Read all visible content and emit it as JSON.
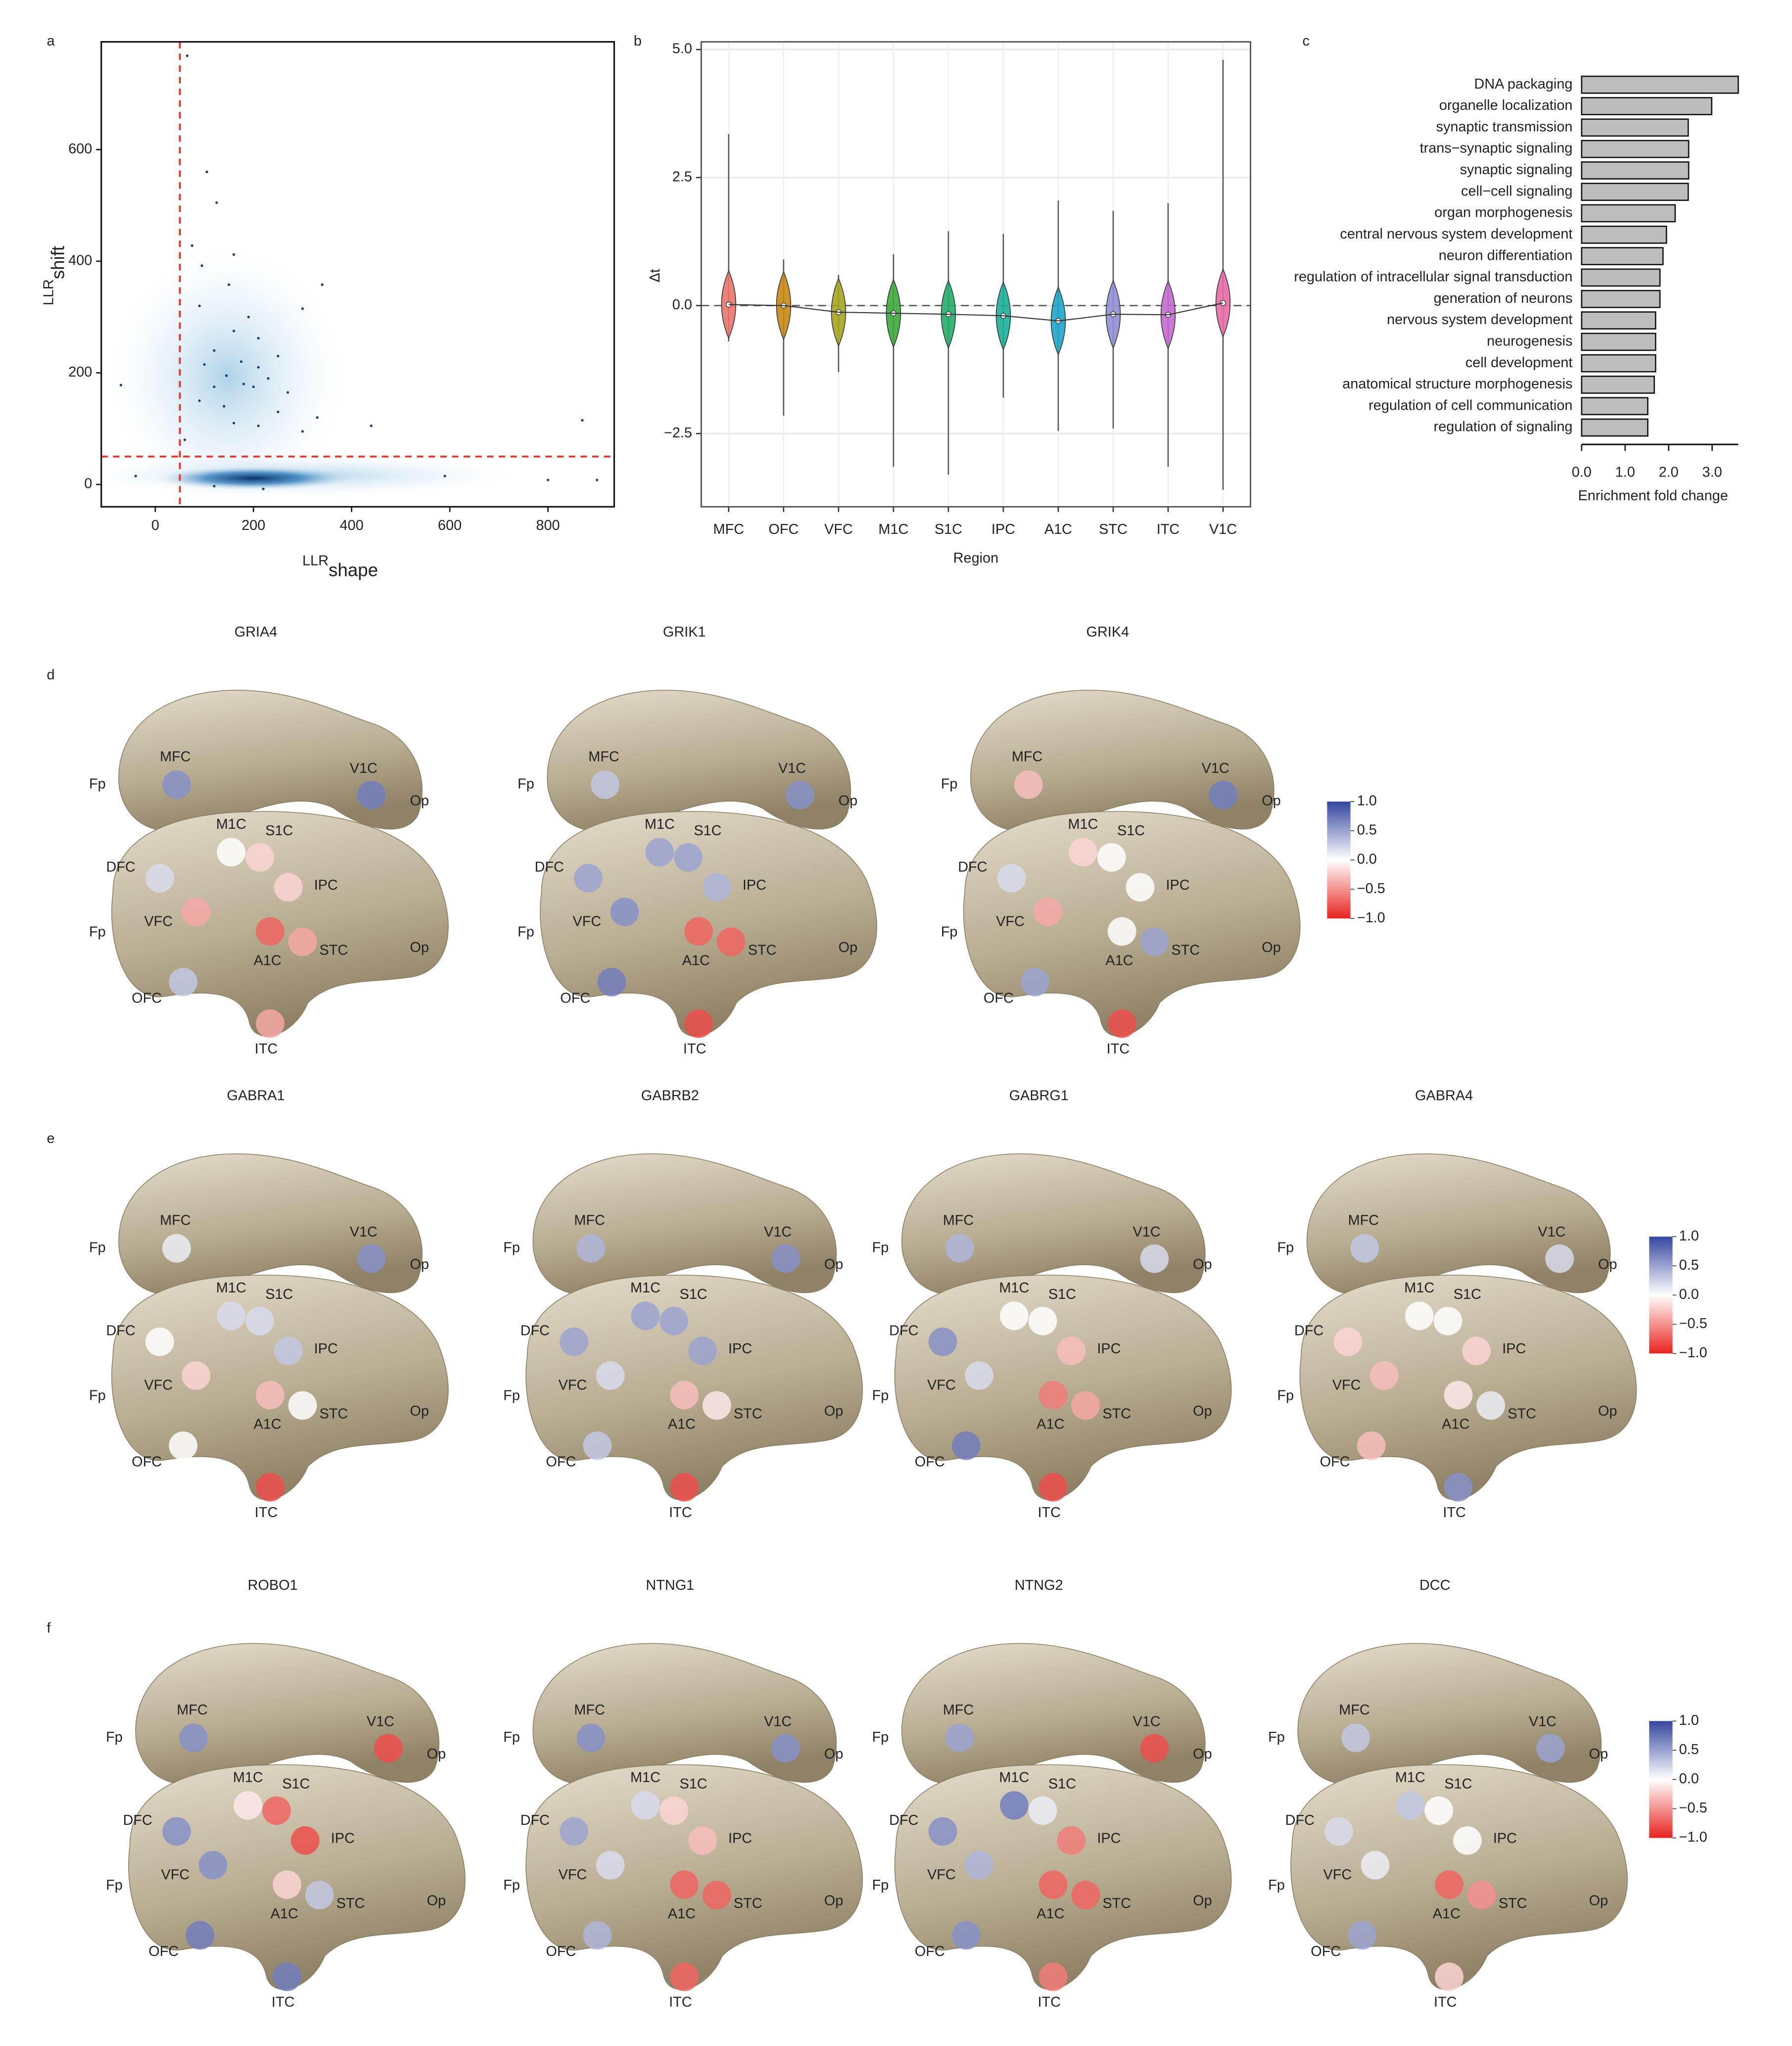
{
  "chart_data": [
    {
      "type": "scatter",
      "panel": "a",
      "xlabel": "LLR",
      "xlabel_sub": "shape",
      "ylabel": "LLR",
      "ylabel_sub": "shift",
      "x": [
        65,
        105,
        125,
        75,
        160,
        95,
        150,
        340,
        300,
        90,
        190,
        160,
        210,
        120,
        250,
        175,
        100,
        210,
        145,
        230,
        180,
        200,
        120,
        270,
        90,
        140,
        250,
        330,
        160,
        210,
        440,
        300,
        870,
        -70,
        60,
        -40,
        590,
        800,
        900,
        220,
        120
      ],
      "y": [
        768,
        560,
        505,
        428,
        412,
        392,
        358,
        358,
        315,
        320,
        300,
        275,
        262,
        240,
        230,
        220,
        215,
        210,
        195,
        190,
        180,
        175,
        175,
        165,
        150,
        140,
        130,
        120,
        110,
        105,
        105,
        95,
        115,
        178,
        80,
        15,
        15,
        8,
        8,
        -8,
        -3
      ],
      "color": "#1d3f6e",
      "xlim": [
        -110,
        935
      ],
      "ylim": [
        -40,
        793
      ],
      "xticks": [
        0,
        200,
        400,
        600,
        800
      ],
      "yticks": [
        0,
        200,
        400,
        600
      ],
      "vline": 50,
      "hline": 50,
      "line_color": "#e03a2e"
    },
    {
      "type": "violin",
      "panel": "b",
      "xlabel": "Region",
      "ylabel": "Δt",
      "categories": [
        "MFC",
        "OFC",
        "VFC",
        "M1C",
        "S1C",
        "IPC",
        "A1C",
        "STC",
        "ITC",
        "V1C"
      ],
      "values": [
        0.02,
        0.0,
        -0.13,
        -0.15,
        -0.17,
        -0.2,
        -0.3,
        -0.17,
        -0.18,
        0.05
      ],
      "min": [
        -0.7,
        -2.15,
        -1.3,
        -3.15,
        -3.3,
        -1.8,
        -2.45,
        -2.4,
        -3.15,
        -3.6
      ],
      "max": [
        3.35,
        0.9,
        0.6,
        1.0,
        1.45,
        1.4,
        2.05,
        1.85,
        2.0,
        4.8
      ],
      "colors": [
        "#e8736b",
        "#c88a12",
        "#a5a520",
        "#3caa3c",
        "#22ad6a",
        "#1aaf99",
        "#1ea5c8",
        "#8f8fd6",
        "#c46cd0",
        "#e86aa5"
      ],
      "ylim": [
        -3.93,
        5.15
      ],
      "yticks": [
        {
          "value": 5,
          "label": "5.0"
        },
        {
          "value": 2.5,
          "label": "2.5"
        },
        {
          "value": 0,
          "label": "0.0"
        },
        {
          "value": -2.5,
          "label": "−2.5"
        }
      ],
      "hline": 0,
      "grid": true
    },
    {
      "type": "barh",
      "panel": "c",
      "xlabel": "Enrichment fold change",
      "categories": [
        "DNA packaging",
        "organelle localization",
        "synaptic transmission",
        "trans−synaptic signaling",
        "synaptic signaling",
        "cell−cell signaling",
        "organ morphogenesis",
        "central nervous system development",
        "neuron differentiation",
        "regulation of intracellular signal transduction",
        "generation of neurons",
        "nervous system development",
        "neurogenesis",
        "cell development",
        "anatomical structure morphogenesis",
        "regulation of cell communication",
        "regulation of signaling"
      ],
      "values": [
        3.6,
        2.99,
        2.45,
        2.46,
        2.46,
        2.45,
        2.15,
        1.95,
        1.87,
        1.8,
        1.8,
        1.7,
        1.7,
        1.7,
        1.67,
        1.52,
        1.52
      ],
      "color": "#bdbdbd",
      "xlim": [
        0,
        3.6
      ],
      "xticks": [
        {
          "value": 0,
          "label": "0.0"
        },
        {
          "value": 1,
          "label": "1.0"
        },
        {
          "value": 2,
          "label": "2.0"
        },
        {
          "value": 3,
          "label": "3.0"
        }
      ]
    },
    {
      "type": "brain_map",
      "panel": "d",
      "regions": [
        "MFC",
        "V1C",
        "M1C",
        "S1C",
        "DFC",
        "IPC",
        "VFC",
        "A1C",
        "STC",
        "OFC",
        "ITC"
      ],
      "landmarks": [
        "Fp",
        "Op"
      ],
      "genes": [
        {
          "name": "GRIA4",
          "values": [
            0.6,
            0.7,
            0,
            -0.2,
            0.2,
            -0.2,
            -0.4,
            -0.7,
            -0.4,
            0.3,
            -0.4
          ]
        },
        {
          "name": "GRIK1",
          "values": [
            0.3,
            0.6,
            0.5,
            0.5,
            0.5,
            0.4,
            0.6,
            -0.7,
            -0.7,
            0.7,
            -0.8
          ]
        },
        {
          "name": "GRIK4",
          "values": [
            -0.3,
            0.7,
            -0.2,
            0,
            0.2,
            0,
            -0.4,
            0,
            0.5,
            0.5,
            -0.8
          ]
        }
      ],
      "clim": [
        -1,
        1
      ],
      "cticks": [
        {
          "value": 1,
          "label": "1.0"
        },
        {
          "value": 0.5,
          "label": "0.5"
        },
        {
          "value": 0,
          "label": "0.0"
        },
        {
          "value": -0.5,
          "label": "−0.5"
        },
        {
          "value": -1,
          "label": "−1.0"
        }
      ],
      "colors": {
        "positive": "#3546a0",
        "negative": "#e8231f"
      }
    },
    {
      "type": "brain_map",
      "panel": "e",
      "regions": [
        "MFC",
        "V1C",
        "M1C",
        "S1C",
        "DFC",
        "IPC",
        "VFC",
        "A1C",
        "STC",
        "OFC",
        "ITC"
      ],
      "landmarks": [
        "Fp",
        "Op"
      ],
      "genes": [
        {
          "name": "GABRA1",
          "values": [
            0.1,
            0.6,
            0.2,
            0.2,
            0,
            0.3,
            -0.2,
            -0.3,
            0,
            0,
            -0.8
          ]
        },
        {
          "name": "GABRB2",
          "values": [
            0.4,
            0.6,
            0.5,
            0.5,
            0.5,
            0.5,
            0.2,
            -0.3,
            -0.1,
            0.3,
            -0.8
          ]
        },
        {
          "name": "GABRG1",
          "values": [
            0.4,
            0.2,
            0,
            0,
            0.6,
            -0.3,
            0.2,
            -0.6,
            -0.4,
            0.7,
            -0.8
          ]
        },
        {
          "name": "GABRA4",
          "values": [
            0.3,
            0.2,
            0,
            0,
            -0.2,
            -0.2,
            -0.3,
            -0.1,
            0.1,
            -0.3,
            0.6
          ]
        }
      ],
      "clim": [
        -1,
        1
      ],
      "cticks": [
        {
          "value": 1,
          "label": "1.0"
        },
        {
          "value": 0.5,
          "label": "0.5"
        },
        {
          "value": 0,
          "label": "0.0"
        },
        {
          "value": -0.5,
          "label": "−0.5"
        },
        {
          "value": -1,
          "label": "−1.0"
        }
      ],
      "colors": {
        "positive": "#3546a0",
        "negative": "#e8231f"
      }
    },
    {
      "type": "brain_map",
      "panel": "f",
      "regions": [
        "MFC",
        "V1C",
        "M1C",
        "S1C",
        "DFC",
        "IPC",
        "VFC",
        "A1C",
        "STC",
        "OFC",
        "ITC"
      ],
      "landmarks": [
        "Fp",
        "Op"
      ],
      "genes": [
        {
          "name": "ROBO1",
          "values": [
            0.6,
            -0.8,
            -0.1,
            -0.7,
            0.6,
            -0.8,
            0.6,
            -0.2,
            0.3,
            0.7,
            0.7
          ]
        },
        {
          "name": "NTNG1",
          "values": [
            0.6,
            0.6,
            0.2,
            -0.2,
            0.5,
            -0.3,
            0.2,
            -0.7,
            -0.7,
            0.4,
            -0.7
          ]
        },
        {
          "name": "NTNG2",
          "values": [
            0.5,
            -0.8,
            0.7,
            0.1,
            0.6,
            -0.6,
            0.4,
            -0.7,
            -0.7,
            0.6,
            -0.6
          ]
        },
        {
          "name": "DCC",
          "values": [
            0.3,
            0.5,
            0.3,
            0,
            0.2,
            0,
            0.1,
            -0.7,
            -0.5,
            0.5,
            -0.2
          ]
        }
      ],
      "clim": [
        -1,
        1
      ],
      "cticks": [
        {
          "value": 1,
          "label": "1.0"
        },
        {
          "value": 0.5,
          "label": "0.5"
        },
        {
          "value": 0,
          "label": "0.0"
        },
        {
          "value": -0.5,
          "label": "−0.5"
        },
        {
          "value": -1,
          "label": "−1.0"
        }
      ],
      "colors": {
        "positive": "#3546a0",
        "negative": "#e8231f"
      }
    }
  ]
}
